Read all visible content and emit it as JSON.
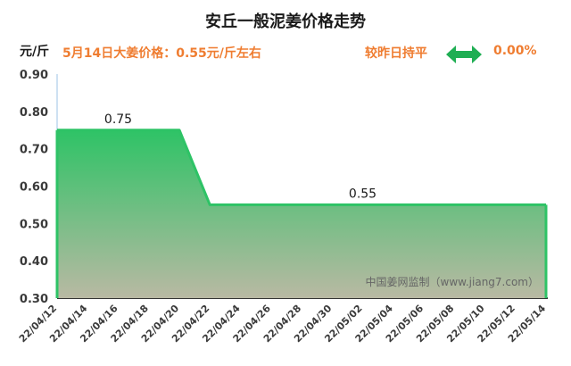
{
  "header": {
    "title": "安丘一般泥姜价格走势",
    "unit": "元/斤",
    "price_note": "5月14日大姜价格：0.55元/斤左右",
    "trend_label": "较昨日持平",
    "trend_icon": "left-right-arrow-icon",
    "trend_pct": "0.00%"
  },
  "watermark": "中国姜网监制（www.jiang7.com）",
  "colors": {
    "line": "#2ec366",
    "fill_top": "#2ec366",
    "fill_bottom": "#b9b9a3",
    "arrow": "#1fae53",
    "accent_text": "#ef7d31"
  },
  "chart_data": {
    "type": "area",
    "title": "安丘一般泥姜价格走势",
    "ylabel": "元/斤",
    "xlabel": "",
    "ylim": [
      0.3,
      0.9
    ],
    "yticks": [
      "0.30",
      "0.40",
      "0.50",
      "0.60",
      "0.70",
      "0.80",
      "0.90"
    ],
    "grid": false,
    "xticks": [
      "22/04/12",
      "22/04/14",
      "22/04/16",
      "22/04/18",
      "22/04/20",
      "22/04/22",
      "22/04/24",
      "22/04/26",
      "22/04/28",
      "22/04/30",
      "22/05/02",
      "22/05/04",
      "22/05/06",
      "22/05/08",
      "22/05/10",
      "22/05/12",
      "22/05/14"
    ],
    "x": [
      "22/04/12",
      "22/04/13",
      "22/04/14",
      "22/04/15",
      "22/04/16",
      "22/04/17",
      "22/04/18",
      "22/04/19",
      "22/04/20",
      "22/04/21",
      "22/04/22",
      "22/04/23",
      "22/04/24",
      "22/04/25",
      "22/04/26",
      "22/04/27",
      "22/04/28",
      "22/04/29",
      "22/04/30",
      "22/05/01",
      "22/05/02",
      "22/05/03",
      "22/05/04",
      "22/05/05",
      "22/05/06",
      "22/05/07",
      "22/05/08",
      "22/05/09",
      "22/05/10",
      "22/05/11",
      "22/05/12",
      "22/05/13",
      "22/05/14"
    ],
    "series": [
      {
        "values": [
          0.75,
          0.75,
          0.75,
          0.75,
          0.75,
          0.75,
          0.75,
          0.75,
          0.75,
          0.65,
          0.55,
          0.55,
          0.55,
          0.55,
          0.55,
          0.55,
          0.55,
          0.55,
          0.55,
          0.55,
          0.55,
          0.55,
          0.55,
          0.55,
          0.55,
          0.55,
          0.55,
          0.55,
          0.55,
          0.55,
          0.55,
          0.55,
          0.55
        ]
      }
    ],
    "annotations": [
      {
        "x": "22/04/16",
        "y": 0.75,
        "text": "0.75"
      },
      {
        "x": "22/05/02",
        "y": 0.55,
        "text": "0.55"
      }
    ]
  }
}
